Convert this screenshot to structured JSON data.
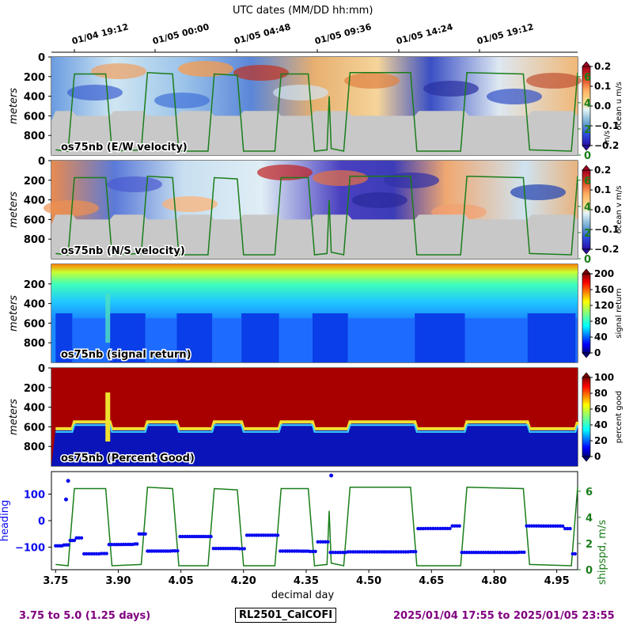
{
  "colors": {
    "green": "#1a7d1a",
    "blue": "#0a0af0",
    "purple": "#800080",
    "landmask": "#c8c8c8"
  },
  "header": {
    "title": "UTC dates (MM/DD hh:mm)",
    "date_ticks": [
      "01/04 19:12",
      "01/05 00:00",
      "01/05 04:48",
      "01/05 09:36",
      "01/05 14:24",
      "01/05 19:12"
    ]
  },
  "footer": {
    "range_text": "3.75 to 5.0 (1.25 days)",
    "cruise": "RL2501_CalCOFI",
    "date_range": "2025/01/04 17:55 to 2025/01/05 23:55"
  },
  "chart_data": [
    {
      "type": "heatmap",
      "title": "os75nb (E/W velocity)",
      "ylabel": "meters",
      "yticks": [
        "0",
        "200",
        "400",
        "600",
        "800"
      ],
      "colorbar_label": "ocean u m/s",
      "colorbar_ticks": [
        "0.2",
        "0.1",
        "0.0",
        "−0.1",
        "−0.2"
      ],
      "colormap": "RdYlBu_r",
      "vrange": [
        -0.2,
        0.2
      ],
      "right_axis_label": "m/s",
      "right_ticks": [
        "0",
        "2",
        "4",
        "6"
      ]
    },
    {
      "type": "heatmap",
      "title": "os75nb (N/S velocity)",
      "ylabel": "meters",
      "yticks": [
        "0",
        "200",
        "400",
        "600",
        "800"
      ],
      "colorbar_label": "ocean v m/s",
      "colorbar_ticks": [
        "0.2",
        "0.1",
        "0.0",
        "−0.1",
        "−0.2"
      ],
      "colormap": "RdYlBu_r",
      "vrange": [
        -0.2,
        0.2
      ],
      "right_ticks": [
        "0",
        "2",
        "4",
        "6"
      ]
    },
    {
      "type": "heatmap",
      "title": "os75nb (signal return)",
      "ylabel": "meters",
      "yticks": [
        "200",
        "400",
        "600",
        "800"
      ],
      "colorbar_label": "signal return",
      "colorbar_ticks": [
        "200",
        "160",
        "120",
        "80",
        "40",
        "0"
      ],
      "colormap": "jet",
      "vrange": [
        0,
        200
      ]
    },
    {
      "type": "heatmap",
      "title": "os75nb (Percent Good)",
      "ylabel": "meters",
      "yticks": [
        "0",
        "200",
        "400",
        "600",
        "800"
      ],
      "colorbar_label": "percent good",
      "colorbar_ticks": [
        "100",
        "80",
        "60",
        "40",
        "20",
        "0"
      ],
      "colormap": "jet",
      "vrange": [
        0,
        100
      ]
    },
    {
      "type": "scatter",
      "title": "",
      "xlabel": "decimal day",
      "xticks": [
        "3.75",
        "3.90",
        "4.05",
        "4.20",
        "4.35",
        "4.50",
        "4.65",
        "4.80",
        "4.95"
      ],
      "xlim": [
        3.74,
        5.0
      ],
      "ylabel_left": "heading",
      "yticks_left": [
        "100",
        "0",
        "−100"
      ],
      "ylim_left": [
        -185,
        185
      ],
      "ylabel_right": "shipspd, m/s",
      "yticks_right": [
        "6",
        "4",
        "2",
        "0"
      ],
      "ylim_right": [
        0,
        7.5
      ],
      "ship_speed": [
        {
          "t": 3.75,
          "v": 0.4
        },
        {
          "t": 3.78,
          "v": 0.3
        },
        {
          "t": 3.795,
          "v": 6.2
        },
        {
          "t": 3.87,
          "v": 6.2
        },
        {
          "t": 3.885,
          "v": 0.3
        },
        {
          "t": 3.955,
          "v": 0.4
        },
        {
          "t": 3.97,
          "v": 6.3
        },
        {
          "t": 4.03,
          "v": 6.2
        },
        {
          "t": 4.045,
          "v": 0.3
        },
        {
          "t": 4.115,
          "v": 0.3
        },
        {
          "t": 4.13,
          "v": 6.2
        },
        {
          "t": 4.185,
          "v": 6.1
        },
        {
          "t": 4.2,
          "v": 0.3
        },
        {
          "t": 4.275,
          "v": 0.3
        },
        {
          "t": 4.29,
          "v": 6.2
        },
        {
          "t": 4.355,
          "v": 6.2
        },
        {
          "t": 4.37,
          "v": 0.3
        },
        {
          "t": 4.4,
          "v": 0.4
        },
        {
          "t": 4.405,
          "v": 4.5
        },
        {
          "t": 4.41,
          "v": 0.5
        },
        {
          "t": 4.44,
          "v": 0.3
        },
        {
          "t": 4.455,
          "v": 6.3
        },
        {
          "t": 4.6,
          "v": 6.3
        },
        {
          "t": 4.615,
          "v": 0.3
        },
        {
          "t": 4.72,
          "v": 0.3
        },
        {
          "t": 4.735,
          "v": 6.3
        },
        {
          "t": 4.87,
          "v": 6.2
        },
        {
          "t": 4.885,
          "v": 0.4
        },
        {
          "t": 4.985,
          "v": 0.3
        },
        {
          "t": 5.0,
          "v": 6.3
        }
      ],
      "heading": [
        {
          "t": 3.75,
          "v": -95
        },
        {
          "t": 3.77,
          "v": -92
        },
        {
          "t": 3.785,
          "v": -75
        },
        {
          "t": 3.8,
          "v": -65
        },
        {
          "t": 3.83,
          "v": -125
        },
        {
          "t": 3.86,
          "v": -124
        },
        {
          "t": 3.89,
          "v": -90
        },
        {
          "t": 3.94,
          "v": -88
        },
        {
          "t": 3.96,
          "v": -50
        },
        {
          "t": 3.98,
          "v": -115
        },
        {
          "t": 4.03,
          "v": -114
        },
        {
          "t": 4.06,
          "v": -60
        },
        {
          "t": 4.11,
          "v": -60
        },
        {
          "t": 4.14,
          "v": -105
        },
        {
          "t": 4.19,
          "v": -106
        },
        {
          "t": 4.22,
          "v": -55
        },
        {
          "t": 4.27,
          "v": -55
        },
        {
          "t": 4.3,
          "v": -115
        },
        {
          "t": 4.36,
          "v": -116
        },
        {
          "t": 4.39,
          "v": -80
        },
        {
          "t": 4.42,
          "v": -120
        },
        {
          "t": 4.45,
          "v": -118
        },
        {
          "t": 4.6,
          "v": -117
        },
        {
          "t": 4.63,
          "v": -30
        },
        {
          "t": 4.7,
          "v": -20
        },
        {
          "t": 4.74,
          "v": -120
        },
        {
          "t": 4.86,
          "v": -119
        },
        {
          "t": 4.89,
          "v": -20
        },
        {
          "t": 4.97,
          "v": -30
        },
        {
          "t": 5.0,
          "v": -125
        }
      ],
      "heading_outliers": [
        {
          "t": 3.78,
          "v": 150
        },
        {
          "t": 3.775,
          "v": 80
        },
        {
          "t": 4.41,
          "v": 170
        }
      ]
    }
  ]
}
